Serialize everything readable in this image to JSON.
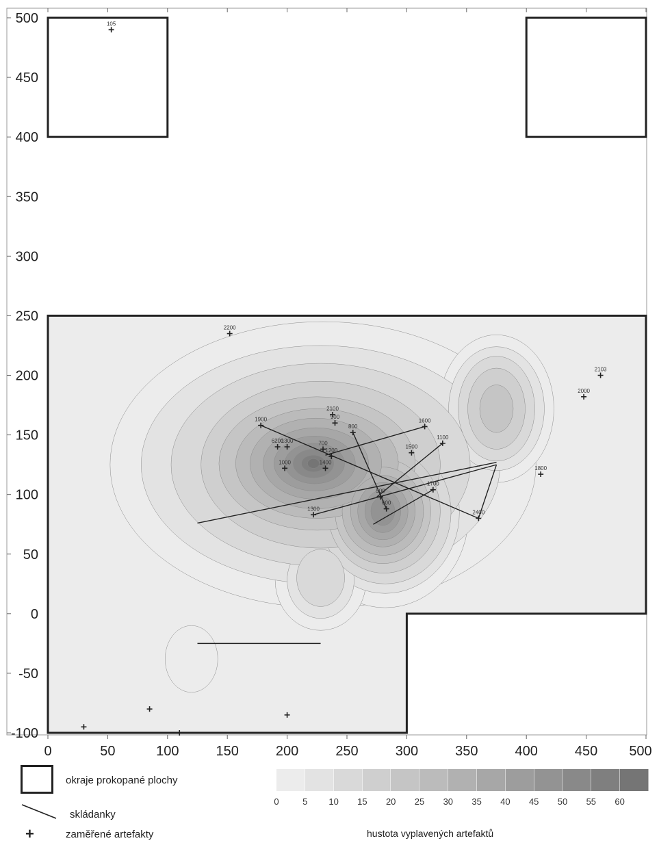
{
  "chart_data": {
    "type": "contour",
    "x_ticks": [
      "0",
      "50",
      "100",
      "150",
      "200",
      "250",
      "300",
      "350",
      "400",
      "450",
      "500"
    ],
    "y_ticks": [
      "500",
      "450",
      "400",
      "350",
      "300",
      "250",
      "200",
      "150",
      "100",
      "50",
      "0",
      "-50",
      "-100"
    ],
    "xlim": [
      0,
      500
    ],
    "ylim": [
      -100,
      500
    ],
    "grid": false,
    "excavated_areas": [
      {
        "name": "upper-left square",
        "polygon": [
          [
            0,
            400
          ],
          [
            100,
            400
          ],
          [
            100,
            500
          ],
          [
            0,
            500
          ]
        ]
      },
      {
        "name": "upper-right square",
        "polygon": [
          [
            400,
            400
          ],
          [
            500,
            400
          ],
          [
            500,
            500
          ],
          [
            400,
            500
          ]
        ]
      },
      {
        "name": "main area",
        "polygon": [
          [
            0,
            -100
          ],
          [
            300,
            -100
          ],
          [
            300,
            0
          ],
          [
            500,
            0
          ],
          [
            500,
            250
          ],
          [
            0,
            250
          ]
        ]
      }
    ],
    "density_levels": [
      0,
      5,
      10,
      15,
      20,
      25,
      30,
      35,
      40,
      45,
      50,
      55,
      60
    ],
    "density_colors": [
      "#ececec",
      "#e3e3e3",
      "#d9d9d9",
      "#cfcfcf",
      "#c5c5c5",
      "#bbbbbb",
      "#b1b1b1",
      "#a7a7a7",
      "#9d9d9d",
      "#939393",
      "#898989",
      "#7f7f7f",
      "#757575"
    ],
    "density_hotspots": [
      {
        "x": 230,
        "y": 125,
        "max_level": 12
      },
      {
        "x": 280,
        "y": 85,
        "max_level": 9
      },
      {
        "x": 375,
        "y": 172,
        "max_level": 5
      },
      {
        "x": 228,
        "y": 28,
        "max_level": 3
      },
      {
        "x": 120,
        "y": -38,
        "max_level": 2
      }
    ],
    "refits": [
      {
        "from": [
          178,
          158
        ],
        "to": [
          360,
          80
        ]
      },
      {
        "from": [
          255,
          152
        ],
        "to": [
          283,
          88
        ]
      },
      {
        "from": [
          232,
          133
        ],
        "to": [
          315,
          157
        ]
      },
      {
        "from": [
          125,
          76
        ],
        "to": [
          375,
          127
        ]
      },
      {
        "from": [
          222,
          83
        ],
        "to": [
          375,
          125
        ]
      },
      {
        "from": [
          275,
          98
        ],
        "to": [
          330,
          143
        ]
      },
      {
        "from": [
          272,
          75
        ],
        "to": [
          322,
          104
        ]
      },
      {
        "from": [
          375,
          125
        ],
        "to": [
          360,
          80
        ]
      },
      {
        "from": [
          125,
          -25
        ],
        "to": [
          228,
          -25
        ]
      }
    ],
    "artifacts": [
      {
        "x": 53,
        "y": 490,
        "label": "105"
      },
      {
        "x": 152,
        "y": 235,
        "label": "2200"
      },
      {
        "x": 462,
        "y": 200,
        "label": "2103"
      },
      {
        "x": 448,
        "y": 182,
        "label": "2000"
      },
      {
        "x": 178,
        "y": 158,
        "label": "1900"
      },
      {
        "x": 238,
        "y": 167,
        "label": "2100"
      },
      {
        "x": 240,
        "y": 160,
        "label": "900"
      },
      {
        "x": 255,
        "y": 152,
        "label": "800"
      },
      {
        "x": 315,
        "y": 157,
        "label": "1600"
      },
      {
        "x": 330,
        "y": 143,
        "label": "1100"
      },
      {
        "x": 192,
        "y": 140,
        "label": "6200"
      },
      {
        "x": 200,
        "y": 140,
        "label": "1300"
      },
      {
        "x": 230,
        "y": 138,
        "label": "700"
      },
      {
        "x": 237,
        "y": 132,
        "label": "1200"
      },
      {
        "x": 304,
        "y": 135,
        "label": "1500"
      },
      {
        "x": 198,
        "y": 122,
        "label": "1000"
      },
      {
        "x": 232,
        "y": 122,
        "label": "1400"
      },
      {
        "x": 412,
        "y": 117,
        "label": "1800"
      },
      {
        "x": 322,
        "y": 104,
        "label": "1700"
      },
      {
        "x": 278,
        "y": 98,
        "label": "500"
      },
      {
        "x": 283,
        "y": 88,
        "label": "600"
      },
      {
        "x": 222,
        "y": 83,
        "label": "1300"
      },
      {
        "x": 360,
        "y": 80,
        "label": "2400"
      },
      {
        "x": 85,
        "y": -80,
        "label": ""
      },
      {
        "x": 200,
        "y": -85,
        "label": ""
      },
      {
        "x": 30,
        "y": -95,
        "label": ""
      },
      {
        "x": 110,
        "y": -100,
        "label": ""
      }
    ]
  },
  "legend": {
    "areas_label": "okraje prokopané plochy",
    "refits_label": "skládanky",
    "artifacts_label": "zaměřené artefakty",
    "scale_title": "hustota vyplavených artefaktů",
    "scale_ticks": [
      "0",
      "5",
      "10",
      "15",
      "20",
      "25",
      "30",
      "35",
      "40",
      "45",
      "50",
      "55",
      "60"
    ]
  }
}
